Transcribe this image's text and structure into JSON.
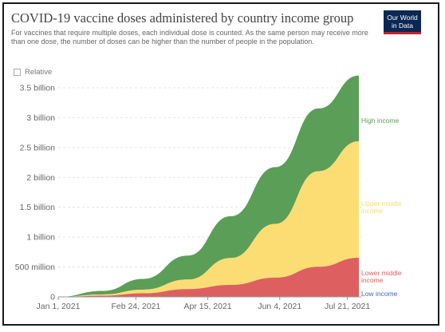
{
  "header": {
    "title": "COVID-19 vaccine doses administered by country income group",
    "subtitle": "For vaccines that require multiple doses, each individual dose is counted. As the same person may receive more than one dose, the number of doses can be higher than the number of people in the population."
  },
  "logo": {
    "line1": "Our World",
    "line2": "in Data"
  },
  "relative_toggle": {
    "label": "Relative",
    "checked": false
  },
  "colors": {
    "high_income": "#5b9e58",
    "upper_middle_income": "#fbdd74",
    "lower_middle_income": "#de5f5f",
    "low_income": "#3e6ab0",
    "axis_text": "#666666",
    "grid": "#dddddd"
  },
  "chart_data": {
    "type": "area",
    "stacked": true,
    "x": [
      "2021-01-01",
      "2021-02-01",
      "2021-03-01",
      "2021-04-01",
      "2021-05-01",
      "2021-06-01",
      "2021-07-01",
      "2021-07-29"
    ],
    "x_tick_labels": [
      "Jan 1, 2021",
      "Feb 24, 2021",
      "Apr 15, 2021",
      "Jun 4, 2021",
      "Jul 21, 2021"
    ],
    "y_tick_labels": [
      "0",
      "500 million",
      "1 billion",
      "1.5 billion",
      "2 billion",
      "2.5 billion",
      "3 billion",
      "3.5 billion"
    ],
    "y_ticks": [
      0,
      500000000,
      1000000000,
      1500000000,
      2000000000,
      2500000000,
      3000000000,
      3500000000
    ],
    "ylim": [
      0,
      3700000000
    ],
    "grid": "horizontal",
    "legend": "labels at right end of each series",
    "series": [
      {
        "name": "Low income",
        "key": "low_income",
        "values": [
          0,
          0,
          200000,
          500000,
          1000000,
          2000000,
          4000000,
          5000000
        ]
      },
      {
        "name": "Lower middle income",
        "key": "lower_middle_income",
        "values": [
          0,
          20000000,
          60000000,
          130000000,
          200000000,
          320000000,
          500000000,
          650000000
        ]
      },
      {
        "name": "Upper middle income",
        "key": "upper_middle_income",
        "values": [
          0,
          20000000,
          60000000,
          160000000,
          450000000,
          900000000,
          1600000000,
          1950000000
        ]
      },
      {
        "name": "High income",
        "key": "high_income",
        "values": [
          0,
          60000000,
          180000000,
          400000000,
          700000000,
          950000000,
          1050000000,
          1100000000
        ]
      }
    ]
  }
}
